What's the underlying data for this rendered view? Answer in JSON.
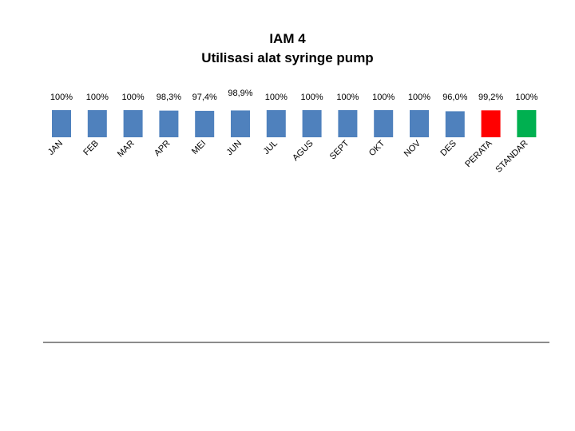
{
  "title_line1": "IAM 4",
  "title_line2": "Utilisasi alat syringe pump",
  "chart_data": {
    "type": "bar",
    "title": "IAM 4 Utilisasi alat syringe pump",
    "categories": [
      "JAN",
      "FEB",
      "MAR",
      "APR",
      "MEI",
      "JUN",
      "JUL",
      "AGUS",
      "SEPT",
      "OKT",
      "NOV",
      "DES",
      "PERATA",
      "STANDAR"
    ],
    "values": [
      100,
      100,
      100,
      98.3,
      97.4,
      98.9,
      100,
      100,
      100,
      100,
      100,
      96.0,
      99.2,
      100
    ],
    "data_labels": [
      "100%",
      "100%",
      "100%",
      "98,3%",
      "97,4%",
      "98,9%",
      "100%",
      "100%",
      "100%",
      "100%",
      "100%",
      "96,0%",
      "99,2%",
      "100%"
    ],
    "colors": [
      "#4f81bd",
      "#4f81bd",
      "#4f81bd",
      "#4f81bd",
      "#4f81bd",
      "#4f81bd",
      "#4f81bd",
      "#4f81bd",
      "#4f81bd",
      "#4f81bd",
      "#4f81bd",
      "#4f81bd",
      "#ff0000",
      "#00b050"
    ],
    "xlabel": "",
    "ylabel": "",
    "grid": false,
    "legend": "none"
  }
}
